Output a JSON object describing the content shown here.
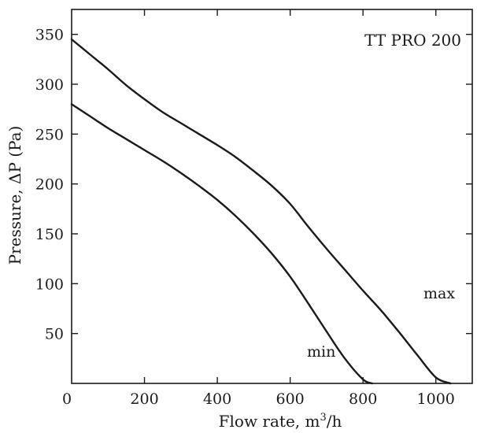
{
  "chart_data": {
    "type": "line",
    "title": "TT PRO 200",
    "xlabel": "Flow rate, m",
    "xlabel_sup": "3",
    "xlabel_tail": "/h",
    "ylabel": "Pressure, ΔP (Pa)",
    "xlim": [
      0,
      1100
    ],
    "ylim": [
      0,
      375
    ],
    "xticks": [
      0,
      200,
      400,
      600,
      800,
      1000
    ],
    "yticks": [
      50,
      100,
      150,
      200,
      250,
      300,
      350
    ],
    "xtick_labels": [
      "0",
      "200",
      "400",
      "600",
      "800",
      "1000"
    ],
    "ytick_labels": [
      "50",
      "100",
      "150",
      "200",
      "250",
      "300",
      "350"
    ],
    "series": [
      {
        "name": "max",
        "x": [
          0,
          50,
          100,
          150,
          200,
          250,
          300,
          350,
          400,
          450,
          500,
          550,
          600,
          650,
          700,
          750,
          800,
          850,
          900,
          950,
          1000,
          1040
        ],
        "y": [
          345,
          330,
          315,
          299,
          285,
          272,
          261,
          250,
          239,
          227,
          213,
          198,
          180,
          157,
          135,
          114,
          93,
          73,
          51,
          28,
          6,
          0
        ]
      },
      {
        "name": "min",
        "x": [
          0,
          50,
          100,
          150,
          200,
          250,
          300,
          350,
          400,
          450,
          500,
          550,
          600,
          650,
          700,
          750,
          800,
          825
        ],
        "y": [
          280,
          268,
          256,
          245,
          234,
          223,
          211,
          198,
          184,
          168,
          150,
          130,
          107,
          80,
          52,
          25,
          4,
          0
        ]
      }
    ],
    "grid": false,
    "legend": "none"
  }
}
